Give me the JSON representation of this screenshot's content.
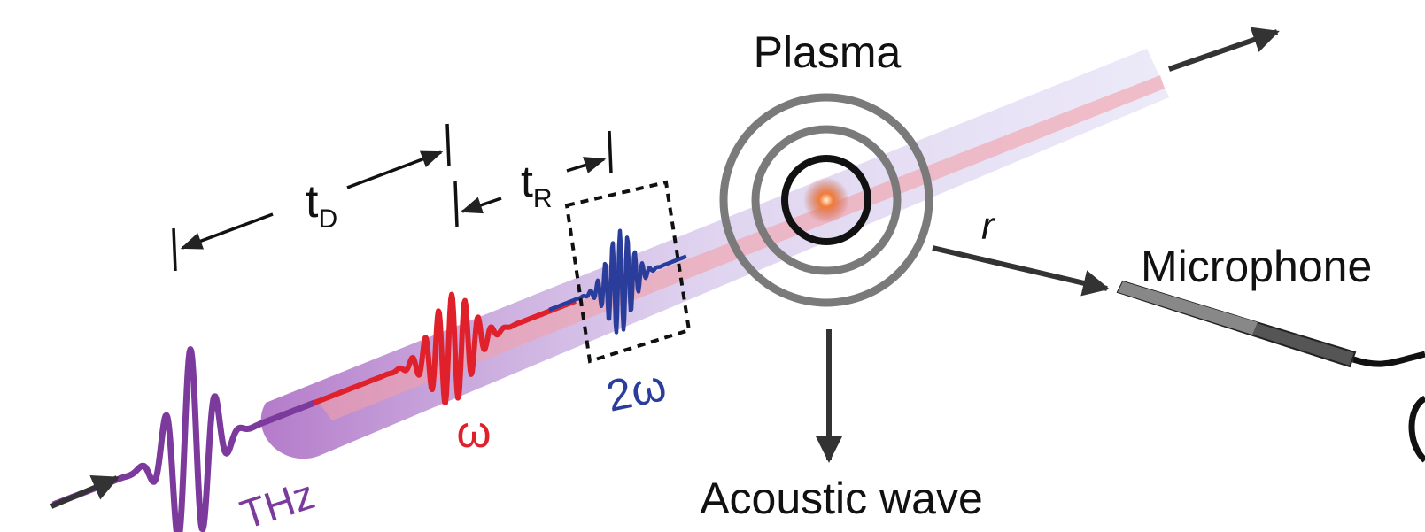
{
  "labels": {
    "plasma": "Plasma",
    "delay": {
      "text": "t",
      "subscript": "D"
    },
    "rise": {
      "text": "t",
      "subscript": "R"
    },
    "distance": "r",
    "microphone": "Microphone",
    "second_harmonic": "2ω",
    "fundamental": "ω",
    "thz": "THz",
    "acoustic": "Acoustic wave"
  }
}
